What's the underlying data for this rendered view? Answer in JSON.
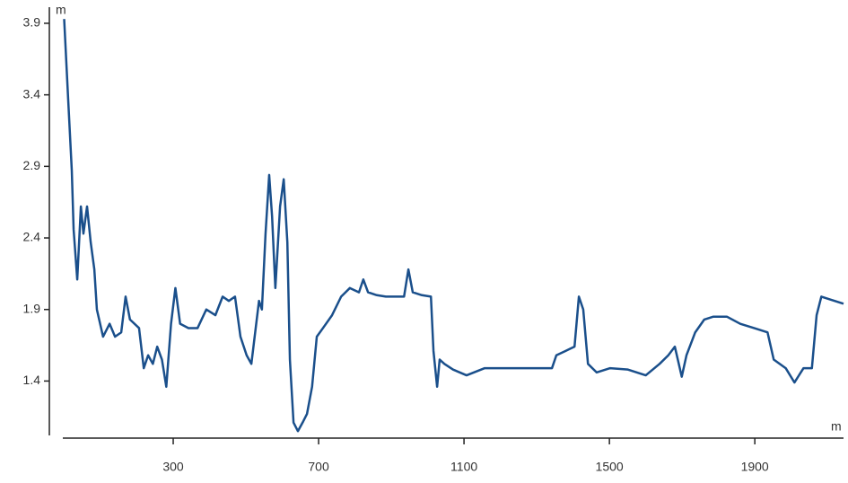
{
  "chart_data": {
    "type": "line",
    "y_unit": "m",
    "x_unit": "m",
    "x": [
      0,
      11,
      21,
      26,
      36,
      46,
      53,
      63,
      73,
      83,
      90,
      107,
      125,
      140,
      157,
      169,
      181,
      206,
      219,
      231,
      244,
      256,
      269,
      281,
      294,
      306,
      319,
      342,
      367,
      391,
      416,
      436,
      453,
      470,
      485,
      502,
      515,
      536,
      544,
      554,
      564,
      572,
      581,
      594,
      604,
      614,
      621,
      631,
      643,
      656,
      668,
      682,
      695,
      712,
      737,
      762,
      786,
      811,
      823,
      836,
      860,
      885,
      910,
      935,
      947,
      959,
      984,
      1009,
      1016,
      1026,
      1033,
      1046,
      1070,
      1107,
      1157,
      1206,
      1256,
      1305,
      1342,
      1354,
      1379,
      1404,
      1416,
      1428,
      1441,
      1465,
      1502,
      1551,
      1600,
      1638,
      1662,
      1680,
      1699,
      1712,
      1736,
      1761,
      1786,
      1823,
      1860,
      1898,
      1935,
      1952,
      1985,
      2009,
      2034,
      2057,
      2070,
      2083,
      2107,
      2144
    ],
    "series": [
      {
        "color": "#1a4f8b",
        "values": [
          3.93,
          3.37,
          2.87,
          2.46,
          2.11,
          2.62,
          2.43,
          2.62,
          2.37,
          2.18,
          1.9,
          1.71,
          1.8,
          1.71,
          1.74,
          1.99,
          1.83,
          1.77,
          1.49,
          1.58,
          1.52,
          1.64,
          1.55,
          1.36,
          1.8,
          2.05,
          1.8,
          1.77,
          1.77,
          1.9,
          1.86,
          1.99,
          1.96,
          1.99,
          1.71,
          1.58,
          1.52,
          1.96,
          1.9,
          2.43,
          2.84,
          2.55,
          2.05,
          2.62,
          2.81,
          2.37,
          1.55,
          1.11,
          1.05,
          1.11,
          1.17,
          1.36,
          1.71,
          1.77,
          1.86,
          1.99,
          2.05,
          2.02,
          2.11,
          2.02,
          2.0,
          1.99,
          1.99,
          1.99,
          2.18,
          2.02,
          2.0,
          1.99,
          1.61,
          1.36,
          1.55,
          1.52,
          1.48,
          1.44,
          1.49,
          1.49,
          1.49,
          1.49,
          1.49,
          1.58,
          1.61,
          1.64,
          1.99,
          1.9,
          1.52,
          1.46,
          1.49,
          1.48,
          1.44,
          1.52,
          1.58,
          1.64,
          1.43,
          1.58,
          1.74,
          1.83,
          1.85,
          1.85,
          1.8,
          1.77,
          1.74,
          1.55,
          1.49,
          1.39,
          1.49,
          1.49,
          1.86,
          1.99,
          1.97,
          1.94
        ]
      }
    ],
    "xlim": [
      0,
      2144
    ],
    "ylim": [
      1.02,
      4.0
    ],
    "xticks": [
      300,
      700,
      1100,
      1500,
      1900
    ],
    "yticks": [
      1.4,
      1.9,
      2.4,
      2.9,
      3.4,
      3.9
    ]
  }
}
